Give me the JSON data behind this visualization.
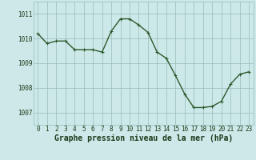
{
  "x": [
    0,
    1,
    2,
    3,
    4,
    5,
    6,
    7,
    8,
    9,
    10,
    11,
    12,
    13,
    14,
    15,
    16,
    17,
    18,
    19,
    20,
    21,
    22,
    23
  ],
  "y": [
    1010.2,
    1009.8,
    1009.9,
    1009.9,
    1009.55,
    1009.55,
    1009.55,
    1009.45,
    1010.3,
    1010.8,
    1010.8,
    1010.55,
    1010.25,
    1009.45,
    1009.2,
    1008.5,
    1007.75,
    1007.2,
    1007.2,
    1007.25,
    1007.45,
    1008.15,
    1008.55,
    1008.65
  ],
  "line_color": "#2d5a2d",
  "marker": "+",
  "marker_color": "#2d5a2d",
  "bg_color": "#cce8e8",
  "grid_color": "#99bbbb",
  "xlabel": "Graphe pression niveau de la mer (hPa)",
  "xlabel_color": "#1a3a1a",
  "axis_label_color": "#1a3a1a",
  "ytick_labels": [
    "1007",
    "1008",
    "1009",
    "1010",
    "1011"
  ],
  "yticks": [
    1007,
    1008,
    1009,
    1010,
    1011
  ],
  "xticks": [
    0,
    1,
    2,
    3,
    4,
    5,
    6,
    7,
    8,
    9,
    10,
    11,
    12,
    13,
    14,
    15,
    16,
    17,
    18,
    19,
    20,
    21,
    22,
    23
  ],
  "ylim": [
    1006.5,
    1011.5
  ],
  "xlim": [
    -0.5,
    23.5
  ],
  "tick_fontsize": 5.5,
  "xlabel_fontsize": 7.0,
  "linewidth": 1.0,
  "markersize": 3.5
}
